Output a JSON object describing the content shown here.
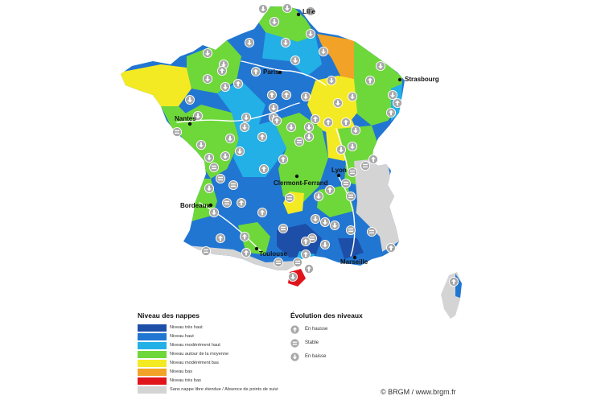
{
  "colors": {
    "tres_haut": "#1d4fa8",
    "haut": "#2176d2",
    "moderement_haut": "#23b0e6",
    "moyenne": "#6ed83a",
    "moderement_bas": "#f3ea24",
    "bas": "#f2a226",
    "tres_bas": "#e0141b",
    "sans_nappe": "#d4d4d4",
    "symbol_fill": "#a8a8a8"
  },
  "cities": [
    {
      "name": "Lille"
    },
    {
      "name": "Paris"
    },
    {
      "name": "Strasbourg"
    },
    {
      "name": "Nantes"
    },
    {
      "name": "Lyon"
    },
    {
      "name": "Clermont-Ferrand"
    },
    {
      "name": "Bordeaux"
    },
    {
      "name": "Toulouse"
    },
    {
      "name": "Marseille"
    }
  ],
  "legend": {
    "title": "Niveau des nappes",
    "items": [
      {
        "color_key": "tres_haut",
        "label": "Niveau très haut"
      },
      {
        "color_key": "haut",
        "label": "Niveau haut"
      },
      {
        "color_key": "moderement_haut",
        "label": "Niveau modérément haut"
      },
      {
        "color_key": "moyenne",
        "label": "Niveau autour de la moyenne"
      },
      {
        "color_key": "moderement_bas",
        "label": "Niveau modérément bas"
      },
      {
        "color_key": "bas",
        "label": "Niveau bas"
      },
      {
        "color_key": "tres_bas",
        "label": "Niveau très bas"
      },
      {
        "color_key": "sans_nappe",
        "label": "Sans nappe libre étendue / Absence de points de suivi"
      }
    ]
  },
  "evolution": {
    "title": "Évolution des niveaux",
    "items": [
      {
        "icon": "arrow-up-icon",
        "label": "En hausse"
      },
      {
        "icon": "equals-icon",
        "label": "Stable"
      },
      {
        "icon": "arrow-down-icon",
        "label": "En baisse"
      }
    ]
  },
  "copyright": "© BRGM / www.brgm.fr"
}
